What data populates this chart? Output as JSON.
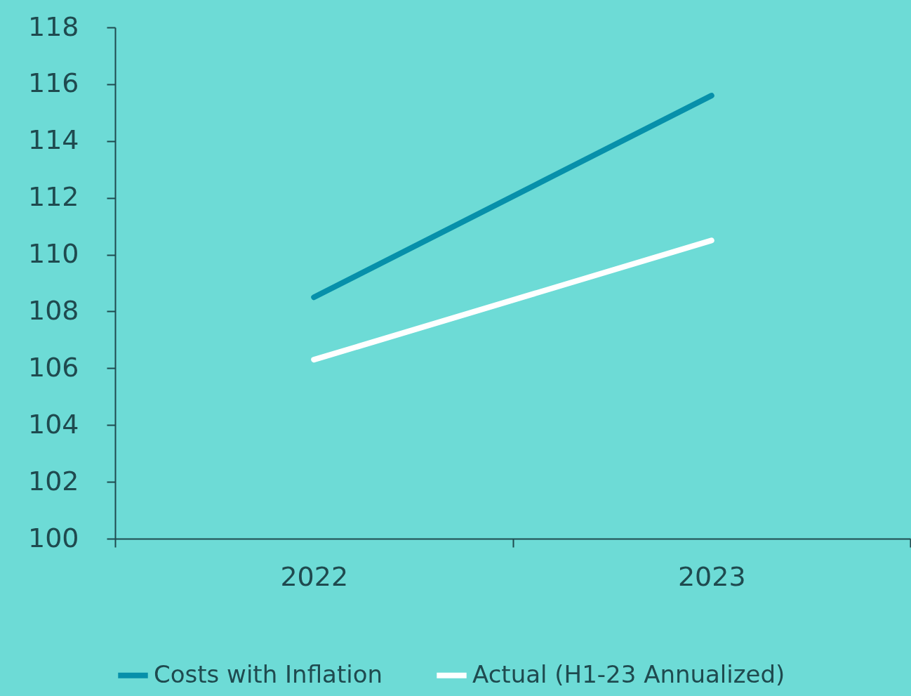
{
  "chart_data": {
    "type": "line",
    "categories": [
      "2022",
      "2023"
    ],
    "series": [
      {
        "name": "Costs with Inflation",
        "color": "#0790aa",
        "values": [
          108.5,
          115.6
        ]
      },
      {
        "name": "Actual (H1-23 Annualized)",
        "color": "#ffffff",
        "values": [
          106.3,
          110.5
        ]
      }
    ],
    "ylim": [
      100,
      118
    ],
    "yticks": [
      100,
      102,
      104,
      106,
      108,
      110,
      112,
      114,
      116,
      118
    ],
    "grid": false,
    "legend": "bottom",
    "line_style": "solid",
    "marker": "none"
  }
}
